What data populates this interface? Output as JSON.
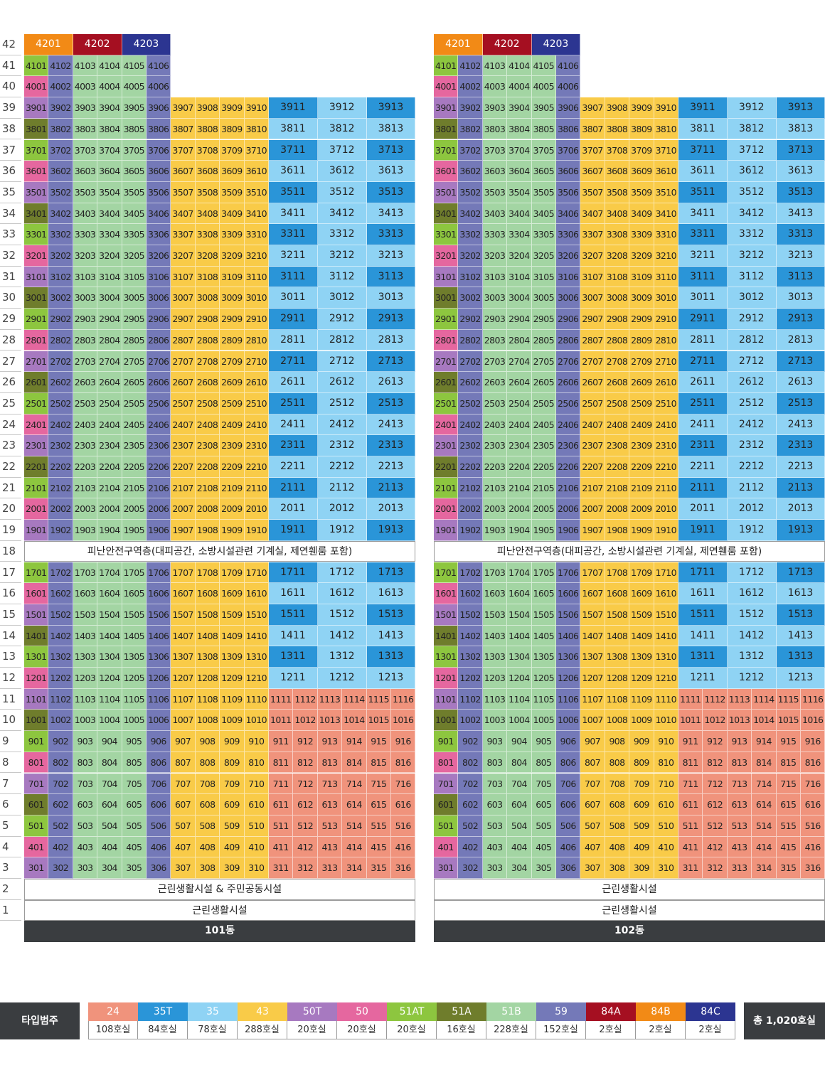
{
  "colors": {
    "24": "#f0937c",
    "35T": "#2a95d8",
    "35": "#8fd3f4",
    "43": "#f9cb48",
    "50T": "#a779c0",
    "50": "#e5679f",
    "51AT": "#8dc63f",
    "51A": "#6f7d2c",
    "51B": "#a3d5a3",
    "59": "#7479b8",
    "84A": "#a50f21",
    "84B": "#f28a16",
    "84C": "#2c3591"
  },
  "floors": [
    "42",
    "41",
    "40",
    "39",
    "38",
    "37",
    "36",
    "35",
    "34",
    "33",
    "32",
    "31",
    "30",
    "29",
    "28",
    "27",
    "26",
    "25",
    "24",
    "23",
    "22",
    "21",
    "20",
    "19",
    "18",
    "17",
    "16",
    "15",
    "14",
    "13",
    "12",
    "11",
    "10",
    "9",
    "8",
    "7",
    "6",
    "5",
    "4",
    "3",
    "2",
    "1"
  ],
  "col_types": [
    "51A",
    "59",
    "51B",
    "51B",
    "51B",
    "59",
    "43",
    "43",
    "43",
    "43",
    "35",
    "35",
    "35"
  ],
  "col1_types_by_floor": {
    "41": "51AT",
    "40": "50",
    "39": "50T",
    "38": "51A",
    "37": "51AT",
    "36": "50",
    "35": "50T",
    "34": "51A",
    "33": "51AT",
    "32": "50",
    "31": "50T",
    "30": "51A",
    "29": "51AT",
    "28": "50",
    "27": "50T",
    "26": "51A",
    "25": "51AT",
    "24": "50",
    "23": "50T",
    "22": "51A",
    "21": "51AT",
    "20": "50",
    "19": "50T",
    "17": "51AT",
    "16": "50",
    "15": "50T",
    "14": "51A",
    "13": "51AT",
    "12": "50",
    "11": "50T",
    "10": "51A",
    "9": "51AT",
    "8": "50",
    "7": "50T",
    "6": "51A",
    "5": "51AT",
    "4": "50",
    "3": "50T"
  },
  "buildings": [
    {
      "name": "101동",
      "penthouse": [
        {
          "unit": "4201",
          "type": "84B"
        },
        {
          "unit": "4202",
          "type": "84A"
        },
        {
          "unit": "4203",
          "type": "84C"
        }
      ],
      "floor18": "피난안전구역층(대피공간, 소방시설관련 기계실, 제연휀룸 포함)",
      "floor2": "근린생활시설 & 주민공동시설",
      "floor1": "근린생활시설"
    },
    {
      "name": "102동",
      "penthouse": [
        {
          "unit": "4201",
          "type": "84B"
        },
        {
          "unit": "4202",
          "type": "84A"
        },
        {
          "unit": "4203",
          "type": "84C"
        }
      ],
      "floor18": "피난안전구역층(대피공간, 소방시설관련 기계실, 제연휀룸 포함)",
      "floor2": "근린생활시설",
      "floor1": "근린생활시설"
    }
  ],
  "legend": {
    "label": "타입범주",
    "total": "총 1,020호실",
    "items": [
      {
        "type": "24",
        "count": "108호실"
      },
      {
        "type": "35T",
        "count": "84호실"
      },
      {
        "type": "35",
        "count": "78호실"
      },
      {
        "type": "43",
        "count": "288호실"
      },
      {
        "type": "50T",
        "count": "20호실"
      },
      {
        "type": "50",
        "count": "20호실"
      },
      {
        "type": "51AT",
        "count": "20호실"
      },
      {
        "type": "51A",
        "count": "16호실"
      },
      {
        "type": "51B",
        "count": "228호실"
      },
      {
        "type": "59",
        "count": "152호실"
      },
      {
        "type": "84A",
        "count": "2호실"
      },
      {
        "type": "84B",
        "count": "2호실"
      },
      {
        "type": "84C",
        "count": "2호실"
      }
    ]
  }
}
